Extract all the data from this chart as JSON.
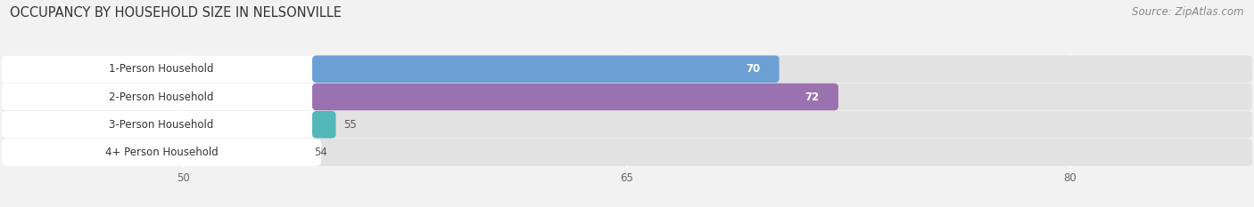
{
  "title": "OCCUPANCY BY HOUSEHOLD SIZE IN NELSONVILLE",
  "source": "Source: ZipAtlas.com",
  "categories": [
    "1-Person Household",
    "2-Person Household",
    "3-Person Household",
    "4+ Person Household"
  ],
  "values": [
    70,
    72,
    55,
    54
  ],
  "bar_colors": [
    "#6c9fd4",
    "#9b72b0",
    "#52b8b8",
    "#a0a8d8"
  ],
  "label_colors": [
    "white",
    "white",
    "#444444",
    "#444444"
  ],
  "xmin": 44,
  "xmax": 86,
  "xticks": [
    50,
    65,
    80
  ],
  "background_color": "#f2f2f2",
  "bar_bg_color": "#e2e2e2",
  "label_box_color": "#ffffff",
  "title_fontsize": 10.5,
  "source_fontsize": 8.5,
  "label_fontsize": 8.5,
  "value_fontsize": 8.5,
  "tick_fontsize": 8.5
}
